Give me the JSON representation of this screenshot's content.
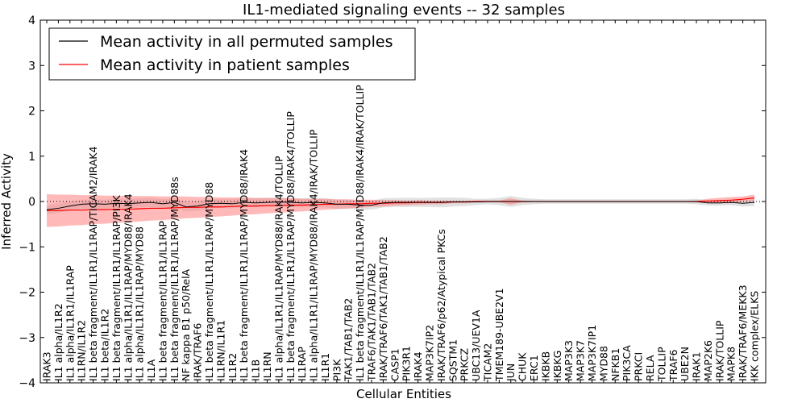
{
  "chart_data": {
    "type": "line",
    "title": "IL1-mediated signaling events -- 32 samples",
    "xlabel": "Cellular Entities",
    "ylabel": "Inferred Activity",
    "ylim": [
      -4,
      4
    ],
    "yticks": [
      -4,
      -3,
      -2,
      -1,
      0,
      1,
      2,
      3,
      4
    ],
    "grid": false,
    "legend_position": "top-left",
    "colors": {
      "permuted": "#000000",
      "patient": "#ff0000",
      "permuted_band": "#c8c8c8",
      "patient_band": "#ff8080"
    },
    "categories": [
      "IRAK3",
      "IL1 alpha/IL1R2",
      "IL1 alpha/IL1R1/IL1RAP",
      "IL1RN/IL1R2",
      "IL1 beta fragment/IL1R1/IL1RAP/TICAM2/IRAK4",
      "IL1 beta/IL1R2",
      "IL1 beta fragment/IL1R1/IL1RAP/PI3K",
      "IL1 alpha/IL1R1/IL1RAP/MYD88/IRAK4",
      "IL1 alpha/IL1R1/IL1RAP/MYD88",
      "IL1A",
      "IL1 beta fragment/IL1R1/IL1RAP",
      "IL1 beta fragment/IL1R1/IL1RAP/MYD88s",
      "NF kappa B1 p50/RelA",
      "IRAK/TRAF6",
      "IL1 beta fragment/IL1R1/IL1RAP/MYD88",
      "IL1RN/IL1R1",
      "IL1R2",
      "IL1 beta fragment/IL1R1/IL1RAP/MYD88/IRAK4",
      "IL1B",
      "IL1RN",
      "IL1 alpha/IL1R1/IL1RAP/MYD88/IRAK4/TOLLIP",
      "IL1 beta fragment/IL1R1/IL1RAP/MYD88/IRAK4/TOLLIP",
      "IL1RAP",
      "IL1 alpha/IL1R1/IL1RAP/MYD88/IRAK4/IRAK/TOLLIP",
      "IL1R1",
      "PI3K",
      "TAK1/TAB1/TAB2",
      "IL1 beta fragment/IL1R1/IL1RAP/MYD88/IRAK4/IRAK/TOLLIP",
      "TRAF6/TAK1/TAB1/TAB2",
      "IRAK/TRAF6/TAK1/TAB1/TAB2",
      "CASP1",
      "PIK3R1",
      "IRAK4",
      "MAP3K7IP2",
      "IRAK/TRAF6/p62/Atypical PKCs",
      "SQSTM1",
      "PRKCZ",
      "UBC13/UEV1A",
      "TICAM2",
      "TMEM189-UBE2V1",
      "JUN",
      "CHUK",
      "ERC1",
      "IKBKB",
      "IKBKG",
      "MAP3K3",
      "MAP3K7",
      "MAP3K7IP1",
      "MYD88",
      "NFKB1",
      "PIK3CA",
      "PRKCI",
      "RELA",
      "TOLLIP",
      "TRAF6",
      "UBE2N",
      "IRAK1",
      "MAP2K6",
      "IRAK/TOLLIP",
      "MAPK8",
      "IRAK/TRAF6/MEKK3",
      "IKK complex/ELKS"
    ],
    "series": [
      {
        "name": "Mean activity in all permuted samples",
        "values": [
          -0.18,
          -0.15,
          -0.1,
          -0.06,
          -0.05,
          -0.06,
          -0.04,
          -0.05,
          -0.03,
          -0.02,
          -0.05,
          -0.02,
          -0.12,
          -0.1,
          -0.05,
          -0.04,
          -0.05,
          -0.02,
          -0.03,
          -0.02,
          -0.01,
          -0.02,
          -0.03,
          -0.02,
          -0.03,
          -0.06,
          -0.06,
          -0.08,
          -0.08,
          -0.03,
          -0.02,
          -0.02,
          -0.02,
          -0.02,
          -0.02,
          -0.01,
          -0.01,
          -0.01,
          0.0,
          0.0,
          0.0,
          0.0,
          0.0,
          0.0,
          0.0,
          0.0,
          0.0,
          0.0,
          0.0,
          0.0,
          0.0,
          0.0,
          0.0,
          0.0,
          0.0,
          0.0,
          0.0,
          -0.03,
          -0.03,
          -0.02,
          -0.04,
          -0.02
        ],
        "band": [
          0.1,
          0.1,
          0.1,
          0.1,
          0.1,
          0.1,
          0.1,
          0.1,
          0.1,
          0.1,
          0.1,
          0.1,
          0.1,
          0.1,
          0.1,
          0.1,
          0.1,
          0.1,
          0.1,
          0.1,
          0.1,
          0.1,
          0.1,
          0.1,
          0.1,
          0.1,
          0.1,
          0.1,
          0.1,
          0.1,
          0.1,
          0.1,
          0.1,
          0.1,
          0.11,
          0.1,
          0.09,
          0.07,
          0.06,
          0.08,
          0.12,
          0.08,
          0.06,
          0.05,
          0.05,
          0.05,
          0.05,
          0.05,
          0.05,
          0.05,
          0.05,
          0.05,
          0.05,
          0.05,
          0.05,
          0.05,
          0.06,
          0.06,
          0.06,
          0.06,
          0.07,
          0.08
        ]
      },
      {
        "name": "Mean activity in patient samples",
        "values": [
          -0.2,
          -0.2,
          -0.19,
          -0.19,
          -0.18,
          -0.18,
          -0.17,
          -0.17,
          -0.16,
          -0.15,
          -0.15,
          -0.14,
          -0.13,
          -0.13,
          -0.12,
          -0.12,
          -0.11,
          -0.1,
          -0.1,
          -0.09,
          -0.09,
          -0.08,
          -0.08,
          -0.07,
          -0.06,
          -0.06,
          -0.05,
          -0.05,
          -0.04,
          -0.04,
          -0.03,
          -0.03,
          -0.02,
          -0.02,
          -0.02,
          -0.01,
          -0.01,
          0.0,
          0.0,
          0.0,
          0.0,
          0.0,
          0.0,
          0.0,
          0.0,
          0.0,
          0.0,
          0.0,
          0.0,
          0.0,
          0.0,
          0.0,
          0.0,
          0.0,
          0.0,
          0.0,
          0.0,
          0.01,
          0.02,
          0.03,
          0.05,
          0.08
        ],
        "band": [
          0.36,
          0.35,
          0.34,
          0.33,
          0.32,
          0.31,
          0.3,
          0.29,
          0.28,
          0.27,
          0.26,
          0.25,
          0.24,
          0.23,
          0.22,
          0.21,
          0.2,
          0.19,
          0.18,
          0.17,
          0.16,
          0.15,
          0.14,
          0.13,
          0.12,
          0.11,
          0.1,
          0.09,
          0.08,
          0.07,
          0.06,
          0.05,
          0.05,
          0.04,
          0.04,
          0.03,
          0.03,
          0.02,
          0.02,
          0.02,
          0.07,
          0.02,
          0.01,
          0.01,
          0.01,
          0.01,
          0.01,
          0.01,
          0.01,
          0.01,
          0.01,
          0.01,
          0.01,
          0.01,
          0.01,
          0.01,
          0.02,
          0.05,
          0.06,
          0.07,
          0.06,
          0.07
        ]
      }
    ]
  }
}
